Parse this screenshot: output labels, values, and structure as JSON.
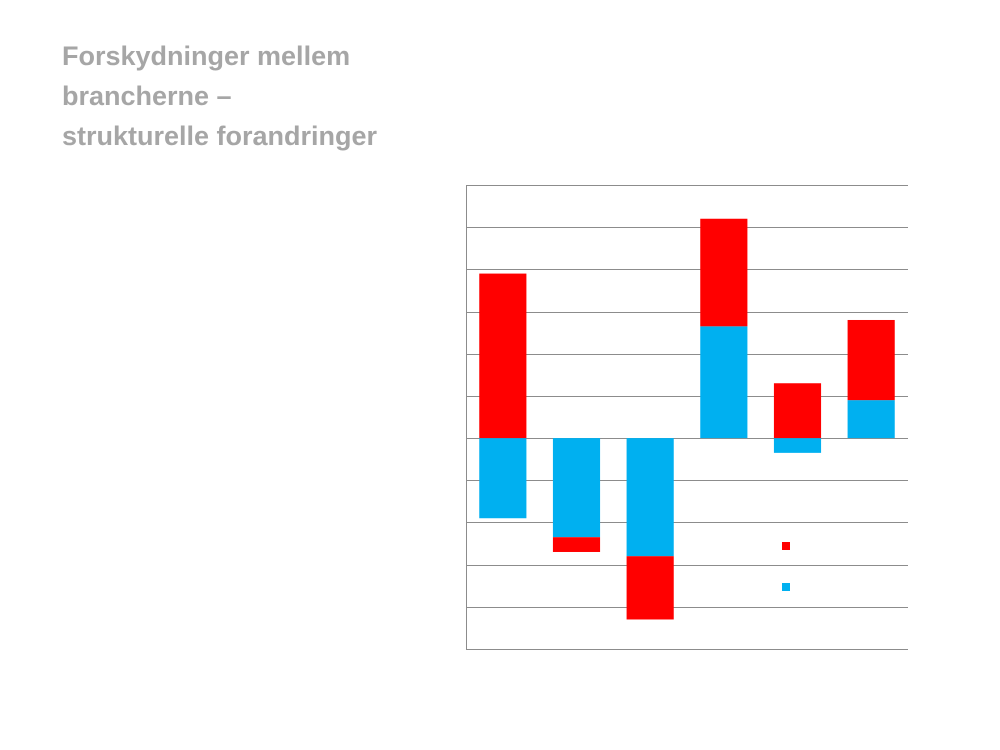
{
  "slide": {
    "title_lines": [
      "Forskydninger mellem",
      "brancherne –",
      "strukturelle forandringer"
    ]
  },
  "chart_data": {
    "type": "bar",
    "stacked": true,
    "categories": [
      "",
      "",
      "",
      "",
      "",
      ""
    ],
    "series": [
      {
        "color": "#00b0f0",
        "values": [
          -1.9,
          -2.35,
          -2.8,
          2.65,
          -0.35,
          0.9
        ]
      },
      {
        "color": "#ff0000",
        "values": [
          3.9,
          -0.35,
          -1.5,
          2.55,
          1.3,
          1.9
        ]
      }
    ],
    "ylim": [
      -5,
      6
    ],
    "y_gridline_step": 1,
    "grid": true,
    "legend": {
      "placement": "lower-right"
    },
    "title": "",
    "xlabel": "",
    "ylabel": ""
  }
}
